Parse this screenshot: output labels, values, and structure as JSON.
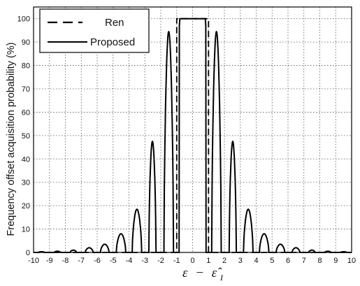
{
  "chart_data": {
    "type": "line",
    "xlabel": "ε − ε̂",
    "xlabel_main": "ε",
    "xlabel_minus": "−",
    "xlabel_hat": "ε̂",
    "xlabel_sub": "I",
    "ylabel": "Frequency offset acquisition probability (%)",
    "xlim": [
      -10,
      10
    ],
    "ylim": [
      0,
      105
    ],
    "x_ticks": [
      "-10",
      "-9",
      "-8",
      "-7",
      "-6",
      "-5",
      "-4",
      "-3",
      "-2",
      "-1",
      "0",
      "1",
      "2",
      "3",
      "4",
      "5",
      "6",
      "7",
      "8",
      "9",
      "10"
    ],
    "y_ticks": [
      "0",
      "10",
      "20",
      "30",
      "40",
      "50",
      "60",
      "70",
      "80",
      "90",
      "100"
    ],
    "grid": true,
    "legend_position": "top-left",
    "series": [
      {
        "name": "Ren",
        "style": "dashed",
        "color": "#000000",
        "x": [
          -10,
          -1,
          -1,
          1,
          1,
          10
        ],
        "y": [
          0,
          0,
          100,
          100,
          0,
          0
        ]
      },
      {
        "name": "Proposed",
        "style": "solid",
        "color": "#000000",
        "lobes": [
          [
            -9.7,
            -9.3,
            0.3
          ],
          [
            -8.7,
            -8.3,
            0.5
          ],
          [
            -7.7,
            -7.3,
            1.0
          ],
          [
            -6.75,
            -6.25,
            2.0
          ],
          [
            -5.8,
            -5.25,
            3.5
          ],
          [
            -4.8,
            -4.2,
            8.0
          ],
          [
            -3.8,
            -3.2,
            18.5
          ],
          [
            -2.75,
            -2.3,
            47.5
          ],
          [
            -1.8,
            -1.2,
            94.5
          ],
          [
            1.2,
            1.8,
            94.5
          ],
          [
            2.3,
            2.75,
            47.5
          ],
          [
            3.2,
            3.8,
            18.5
          ],
          [
            4.2,
            4.8,
            8.0
          ],
          [
            5.25,
            5.8,
            3.5
          ],
          [
            6.25,
            6.75,
            2.0
          ],
          [
            7.3,
            7.7,
            1.0
          ],
          [
            8.3,
            8.7,
            0.5
          ],
          [
            9.3,
            9.7,
            0.3
          ]
        ],
        "plateau": [
          -0.8,
          0.8,
          100
        ]
      }
    ]
  }
}
